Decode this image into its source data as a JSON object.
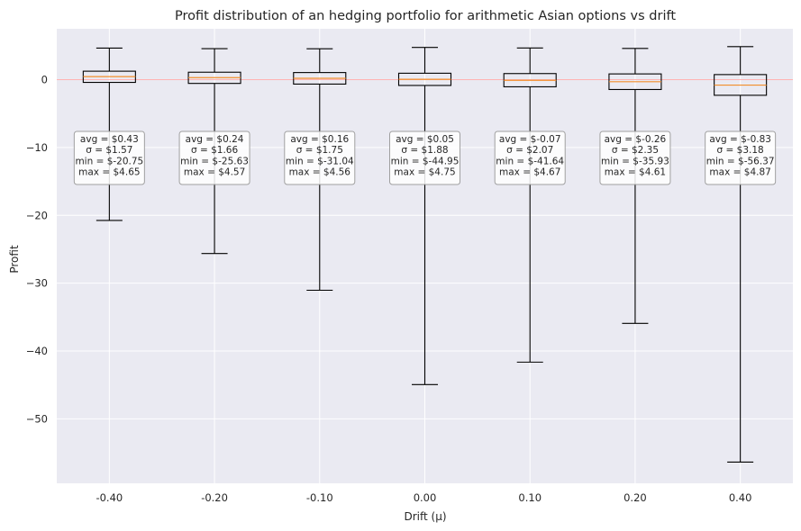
{
  "chart_data": {
    "type": "box",
    "title": "Profit distribution of an hedging portfolio for arithmetic Asian options vs drift",
    "xlabel": "Drift (μ)",
    "ylabel": "Profit",
    "categories": [
      "-0.40",
      "-0.20",
      "-0.10",
      "0.00",
      "0.10",
      "0.20",
      "0.40"
    ],
    "ylim": [
      -59.5,
      7.5
    ],
    "yticks": [
      0,
      -10,
      -20,
      -30,
      -40,
      -50
    ],
    "ytick_labels": [
      "0",
      "−10",
      "−20",
      "−30",
      "−40",
      "−50"
    ],
    "reference_line_y": 0,
    "grid": true,
    "colors": {
      "plot_bg": "#eaeaf2",
      "grid": "#ffffff",
      "box": "#000000",
      "median": "#f28e2b",
      "reference_line": "#ffb3b3"
    },
    "boxes": [
      {
        "min": -20.75,
        "q1": -0.4,
        "median": 0.45,
        "q3": 1.25,
        "max": 4.65
      },
      {
        "min": -25.63,
        "q1": -0.55,
        "median": 0.3,
        "q3": 1.1,
        "max": 4.57
      },
      {
        "min": -31.04,
        "q1": -0.65,
        "median": 0.2,
        "q3": 1.05,
        "max": 4.56
      },
      {
        "min": -44.95,
        "q1": -0.85,
        "median": 0.05,
        "q3": 0.95,
        "max": 4.75
      },
      {
        "min": -41.64,
        "q1": -1.05,
        "median": -0.1,
        "q3": 0.9,
        "max": 4.67
      },
      {
        "min": -35.93,
        "q1": -1.45,
        "median": -0.3,
        "q3": 0.85,
        "max": 4.61
      },
      {
        "min": -56.37,
        "q1": -2.3,
        "median": -0.8,
        "q3": 0.75,
        "max": 4.87
      }
    ],
    "annotations": [
      [
        "avg = $0.43",
        "σ = $1.57",
        "min = $-20.75",
        "max = $4.65"
      ],
      [
        "avg = $0.24",
        "σ = $1.66",
        "min = $-25.63",
        "max = $4.57"
      ],
      [
        "avg = $0.16",
        "σ = $1.75",
        "min = $-31.04",
        "max = $4.56"
      ],
      [
        "avg = $0.05",
        "σ = $1.88",
        "min = $-44.95",
        "max = $4.75"
      ],
      [
        "avg = $-0.07",
        "σ = $2.07",
        "min = $-41.64",
        "max = $4.67"
      ],
      [
        "avg = $-0.26",
        "σ = $2.35",
        "min = $-35.93",
        "max = $4.61"
      ],
      [
        "avg = $-0.83",
        "σ = $3.18",
        "min = $-56.37",
        "max = $4.87"
      ]
    ]
  }
}
